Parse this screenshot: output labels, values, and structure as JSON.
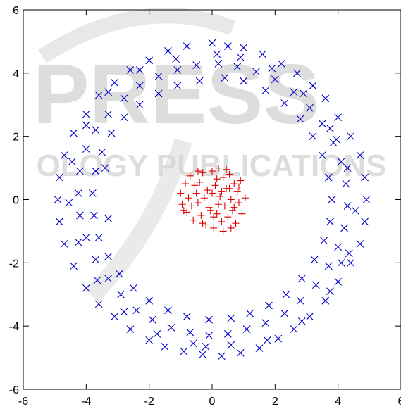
{
  "watermark": {
    "main": "PRESS",
    "sub": "OLOGY PUBLICATIONS",
    "color": "#c8c8c8"
  },
  "chart_data": {
    "type": "scatter",
    "title": "",
    "xlabel": "",
    "ylabel": "",
    "xlim": [
      -6,
      6
    ],
    "ylim": [
      -6,
      6
    ],
    "xticks": [
      -6,
      -4,
      -2,
      0,
      2,
      4,
      6
    ],
    "yticks": [
      -6,
      -4,
      -2,
      0,
      2,
      4,
      6
    ],
    "xtick_labels": [
      "-6",
      "-4",
      "-2",
      "0",
      "2",
      "4",
      "6"
    ],
    "ytick_labels": [
      "-6",
      "-4",
      "-2",
      "0",
      "2",
      "4",
      "6"
    ],
    "grid": false,
    "legend": "none",
    "series": [
      {
        "marker": "x",
        "color": "#0000cc",
        "points": [
          [
            0,
            4.95
          ],
          [
            0.5,
            4.85
          ],
          [
            1,
            4.8
          ],
          [
            1.6,
            4.6
          ],
          [
            2.2,
            4.3
          ],
          [
            2.7,
            4.0
          ],
          [
            3.2,
            3.6
          ],
          [
            3.6,
            3.2
          ],
          [
            4,
            2.6
          ],
          [
            4.4,
            2
          ],
          [
            4.7,
            1.4
          ],
          [
            4.85,
            0.7
          ],
          [
            4.9,
            0
          ],
          [
            4.85,
            -0.7
          ],
          [
            4.7,
            -1.4
          ],
          [
            4.4,
            -2
          ],
          [
            4,
            -2.6
          ],
          [
            3.6,
            -3.2
          ],
          [
            3.1,
            -3.7
          ],
          [
            2.6,
            -4.1
          ],
          [
            2.1,
            -4.4
          ],
          [
            1.5,
            -4.7
          ],
          [
            0.9,
            -4.85
          ],
          [
            0.3,
            -4.95
          ],
          [
            -0.3,
            -4.9
          ],
          [
            -0.9,
            -4.8
          ],
          [
            -1.5,
            -4.65
          ],
          [
            -2,
            -4.45
          ],
          [
            -2.6,
            -4.1
          ],
          [
            -3.1,
            -3.7
          ],
          [
            -3.6,
            -3.3
          ],
          [
            -4,
            -2.8
          ],
          [
            -4.4,
            -2.1
          ],
          [
            -4.7,
            -1.4
          ],
          [
            -4.85,
            -0.7
          ],
          [
            -4.9,
            0
          ],
          [
            -4.85,
            0.7
          ],
          [
            -4.7,
            1.4
          ],
          [
            -4.4,
            2.1
          ],
          [
            -4,
            2.7
          ],
          [
            -3.6,
            3.3
          ],
          [
            -3.1,
            3.7
          ],
          [
            -2.6,
            4.1
          ],
          [
            -2,
            4.4
          ],
          [
            -1.4,
            4.7
          ],
          [
            -0.8,
            4.85
          ],
          [
            0.2,
            4.3
          ],
          [
            0.8,
            4.2
          ],
          [
            1.4,
            4.05
          ],
          [
            2,
            3.8
          ],
          [
            2.6,
            3.4
          ],
          [
            3.1,
            2.9
          ],
          [
            3.5,
            2.4
          ],
          [
            3.85,
            1.8
          ],
          [
            4.1,
            1.2
          ],
          [
            4.25,
            0.5
          ],
          [
            4.3,
            -0.2
          ],
          [
            4.2,
            -0.9
          ],
          [
            4.0,
            -1.5
          ],
          [
            3.7,
            -2.1
          ],
          [
            3.3,
            -2.7
          ],
          [
            2.8,
            -3.2
          ],
          [
            2.3,
            -3.6
          ],
          [
            1.7,
            -3.9
          ],
          [
            1.1,
            -4.1
          ],
          [
            0.5,
            -4.25
          ],
          [
            -0.1,
            -4.3
          ],
          [
            -0.7,
            -4.2
          ],
          [
            -1.3,
            -4.05
          ],
          [
            -1.9,
            -3.8
          ],
          [
            -2.4,
            -3.5
          ],
          [
            -2.9,
            -3.0
          ],
          [
            -3.3,
            -2.5
          ],
          [
            -3.7,
            -1.9
          ],
          [
            -4.0,
            -1.2
          ],
          [
            -4.2,
            -0.5
          ],
          [
            -4.25,
            0.2
          ],
          [
            -4.2,
            0.9
          ],
          [
            -4.0,
            1.6
          ],
          [
            -3.7,
            2.2
          ],
          [
            -3.3,
            2.7
          ],
          [
            -2.8,
            3.2
          ],
          [
            -2.3,
            3.6
          ],
          [
            -1.7,
            3.9
          ],
          [
            -1.1,
            4.1
          ],
          [
            -0.5,
            4.25
          ],
          [
            0.4,
            3.85
          ],
          [
            1.0,
            3.75
          ],
          [
            1.7,
            3.45
          ],
          [
            2.3,
            3.05
          ],
          [
            2.8,
            2.55
          ],
          [
            3.2,
            2.0
          ],
          [
            3.5,
            1.4
          ],
          [
            3.7,
            0.7
          ],
          [
            3.8,
            0.0
          ],
          [
            3.75,
            -0.7
          ],
          [
            3.55,
            -1.3
          ],
          [
            3.25,
            -1.9
          ],
          [
            2.85,
            -2.5
          ],
          [
            2.35,
            -3.0
          ],
          [
            1.8,
            -3.35
          ],
          [
            1.2,
            -3.6
          ],
          [
            0.6,
            -3.75
          ],
          [
            -0.1,
            -3.8
          ],
          [
            -0.8,
            -3.7
          ],
          [
            -1.4,
            -3.5
          ],
          [
            -2.0,
            -3.2
          ],
          [
            -2.5,
            -2.8
          ],
          [
            -2.95,
            -2.35
          ],
          [
            -3.3,
            -1.8
          ],
          [
            -3.6,
            -1.2
          ],
          [
            -3.75,
            -0.5
          ],
          [
            -3.8,
            0.2
          ],
          [
            -3.7,
            0.9
          ],
          [
            -3.5,
            1.5
          ],
          [
            -3.2,
            2.1
          ],
          [
            -2.8,
            2.6
          ],
          [
            -2.3,
            3.0
          ],
          [
            -1.7,
            3.35
          ],
          [
            -1.1,
            3.6
          ],
          [
            -0.4,
            3.75
          ],
          [
            0.9,
            4.5
          ],
          [
            1.9,
            4.15
          ],
          [
            2.9,
            3.35
          ],
          [
            3.75,
            2.25
          ],
          [
            4.3,
            1.0
          ],
          [
            4.55,
            -0.35
          ],
          [
            4.35,
            -1.7
          ],
          [
            3.75,
            -2.9
          ],
          [
            2.85,
            -3.85
          ],
          [
            1.75,
            -4.45
          ],
          [
            0.6,
            -4.6
          ],
          [
            -0.6,
            -4.55
          ],
          [
            -1.75,
            -4.25
          ],
          [
            -2.8,
            -3.55
          ],
          [
            -3.65,
            -2.55
          ],
          [
            -4.25,
            -1.35
          ],
          [
            -4.55,
            -0.1
          ],
          [
            -4.45,
            1.2
          ],
          [
            -4.0,
            2.35
          ],
          [
            -3.3,
            3.4
          ],
          [
            -2.3,
            4.1
          ],
          [
            -1.15,
            4.45
          ],
          [
            -3.4,
            1.0
          ],
          [
            -3.3,
            -0.6
          ],
          [
            4.1,
            -2.0
          ],
          [
            3.95,
            1.9
          ],
          [
            -0.2,
            -4.65
          ],
          [
            0.15,
            4.6
          ]
        ]
      },
      {
        "marker": "+",
        "color": "#dd0000",
        "points": [
          [
            -1.0,
            0.2
          ],
          [
            -0.95,
            -0.15
          ],
          [
            -0.85,
            0.5
          ],
          [
            -0.8,
            -0.4
          ],
          [
            -0.7,
            0.75
          ],
          [
            -0.6,
            -0.65
          ],
          [
            -0.5,
            0.2
          ],
          [
            -0.45,
            -0.1
          ],
          [
            -0.4,
            0.55
          ],
          [
            -0.35,
            -0.5
          ],
          [
            -0.3,
            0.85
          ],
          [
            -0.2,
            -0.8
          ],
          [
            -0.15,
            0.3
          ],
          [
            -0.1,
            -0.25
          ],
          [
            0,
            0.9
          ],
          [
            0.05,
            -0.9
          ],
          [
            0.1,
            0.45
          ],
          [
            0.15,
            -0.45
          ],
          [
            0.2,
            1.0
          ],
          [
            0.25,
            0.1
          ],
          [
            0.3,
            -0.7
          ],
          [
            0.35,
            0.7
          ],
          [
            0.4,
            -0.2
          ],
          [
            0.45,
            0.35
          ],
          [
            0.5,
            -0.55
          ],
          [
            0.55,
            0.8
          ],
          [
            0.6,
            0
          ],
          [
            0.65,
            -0.35
          ],
          [
            0.7,
            0.5
          ],
          [
            0.75,
            -0.75
          ],
          [
            0.8,
            0.25
          ],
          [
            0.85,
            -0.1
          ],
          [
            0.9,
            0.6
          ],
          [
            0.95,
            -0.45
          ],
          [
            1.05,
            0.05
          ],
          [
            -0.75,
            0.05
          ],
          [
            -0.55,
            0.45
          ],
          [
            -0.25,
            0.05
          ],
          [
            0.0,
            0.2
          ],
          [
            0.05,
            -0.55
          ],
          [
            0.3,
            0.25
          ],
          [
            0.45,
            0.95
          ],
          [
            0.55,
            0.35
          ],
          [
            0.7,
            -0.25
          ],
          [
            -0.65,
            -0.2
          ],
          [
            -0.3,
            -0.75
          ],
          [
            0.15,
            0.65
          ],
          [
            -0.05,
            -0.35
          ],
          [
            0.85,
            0.4
          ],
          [
            0.35,
            -1.0
          ],
          [
            -0.9,
            -0.35
          ],
          [
            0.6,
            -0.9
          ],
          [
            -0.45,
            0.9
          ],
          [
            0.2,
            -0.15
          ]
        ]
      }
    ]
  }
}
